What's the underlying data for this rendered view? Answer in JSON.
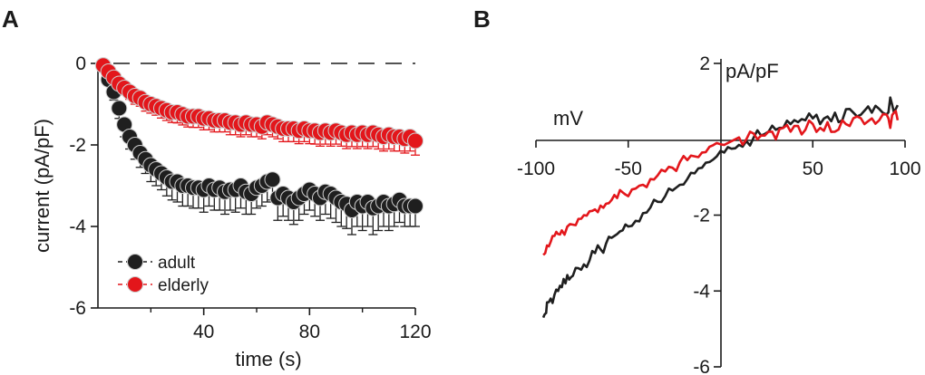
{
  "colors": {
    "adult": "#1f1f1f",
    "elderly": "#e3161b",
    "axis": "#1a1a1a"
  },
  "chart_data": [
    {
      "panel_label": "A",
      "type": "scatter",
      "xlabel": "time (s)",
      "ylabel": "current (pA/pF)",
      "xlim": [
        0,
        120
      ],
      "ylim": [
        -6,
        0
      ],
      "x_ticks": [
        40,
        80,
        120
      ],
      "x_tick_labels": [
        "40",
        "80",
        "120"
      ],
      "y_ticks": [
        0,
        -2,
        -4,
        -6
      ],
      "y_tick_labels": [
        "0",
        "-2",
        "-4",
        "-6"
      ],
      "zero_reference_line": true,
      "error_bars": "one-sided SEM",
      "legend": {
        "position": "bottom-left",
        "entries": [
          "adult",
          "elderly"
        ]
      },
      "series": [
        {
          "name": "adult",
          "x_start": 2,
          "x_step": 2,
          "values": [
            -0.05,
            -0.4,
            -0.7,
            -1.1,
            -1.5,
            -1.8,
            -2.0,
            -2.2,
            -2.35,
            -2.5,
            -2.6,
            -2.7,
            -2.8,
            -2.9,
            -2.9,
            -3.0,
            -3.0,
            -3.05,
            -3.05,
            -3.1,
            -3.0,
            -3.1,
            -3.05,
            -3.15,
            -3.1,
            -3.1,
            -3.0,
            -3.15,
            -3.2,
            -3.05,
            -3.0,
            -2.9,
            -2.85,
            -3.3,
            -3.2,
            -3.3,
            -3.4,
            -3.3,
            -3.2,
            -3.1,
            -3.2,
            -3.3,
            -3.15,
            -3.2,
            -3.3,
            -3.4,
            -3.45,
            -3.6,
            -3.4,
            -3.5,
            -3.4,
            -3.55,
            -3.5,
            -3.4,
            -3.5,
            -3.45,
            -3.35,
            -3.5,
            -3.5,
            -3.5
          ],
          "error": [
            0.05,
            0.15,
            0.2,
            0.25,
            0.3,
            0.3,
            0.35,
            0.35,
            0.35,
            0.4,
            0.4,
            0.4,
            0.45,
            0.45,
            0.5,
            0.5,
            0.5,
            0.5,
            0.5,
            0.55,
            0.5,
            0.5,
            0.55,
            0.55,
            0.5,
            0.55,
            0.55,
            0.55,
            0.5,
            0.5,
            0.5,
            0.5,
            0.5,
            0.55,
            0.55,
            0.55,
            0.55,
            0.55,
            0.5,
            0.5,
            0.55,
            0.55,
            0.55,
            0.6,
            0.6,
            0.6,
            0.6,
            0.6,
            0.6,
            0.6,
            0.6,
            0.65,
            0.6,
            0.6,
            0.6,
            0.55,
            0.55,
            0.5,
            0.5,
            0.5
          ]
        },
        {
          "name": "elderly",
          "x_start": 2,
          "x_step": 2,
          "values": [
            -0.05,
            -0.2,
            -0.35,
            -0.5,
            -0.6,
            -0.7,
            -0.8,
            -0.85,
            -0.95,
            -1.0,
            -1.05,
            -1.1,
            -1.15,
            -1.2,
            -1.2,
            -1.25,
            -1.3,
            -1.3,
            -1.3,
            -1.35,
            -1.35,
            -1.4,
            -1.4,
            -1.4,
            -1.45,
            -1.45,
            -1.5,
            -1.45,
            -1.5,
            -1.5,
            -1.55,
            -1.45,
            -1.5,
            -1.55,
            -1.6,
            -1.6,
            -1.6,
            -1.65,
            -1.6,
            -1.65,
            -1.65,
            -1.7,
            -1.65,
            -1.7,
            -1.65,
            -1.7,
            -1.75,
            -1.7,
            -1.75,
            -1.7,
            -1.75,
            -1.7,
            -1.75,
            -1.8,
            -1.75,
            -1.8,
            -1.8,
            -1.85,
            -1.8,
            -1.9
          ],
          "error": [
            0.03,
            0.08,
            0.1,
            0.12,
            0.15,
            0.18,
            0.2,
            0.2,
            0.22,
            0.22,
            0.22,
            0.24,
            0.25,
            0.25,
            0.26,
            0.26,
            0.26,
            0.27,
            0.27,
            0.28,
            0.28,
            0.28,
            0.28,
            0.28,
            0.3,
            0.3,
            0.3,
            0.3,
            0.3,
            0.3,
            0.3,
            0.3,
            0.3,
            0.3,
            0.32,
            0.32,
            0.32,
            0.32,
            0.32,
            0.32,
            0.33,
            0.33,
            0.33,
            0.33,
            0.33,
            0.33,
            0.34,
            0.34,
            0.34,
            0.34,
            0.34,
            0.34,
            0.35,
            0.35,
            0.35,
            0.35,
            0.35,
            0.35,
            0.35,
            0.35
          ]
        }
      ]
    },
    {
      "panel_label": "B",
      "type": "line",
      "xlabel": "mV",
      "ylabel": "pA/pF",
      "xlim": [
        -100,
        100
      ],
      "ylim": [
        -6,
        2
      ],
      "x_ticks": [
        -100,
        -50,
        50,
        100
      ],
      "x_tick_labels": [
        "-100",
        "-50",
        "50",
        "100"
      ],
      "y_ticks": [
        2,
        -2,
        -4,
        -6
      ],
      "y_tick_labels": [
        "2",
        "-2",
        "-4",
        "-6"
      ],
      "axes_cross_at_origin": true,
      "series": [
        {
          "name": "adult",
          "x": [
            -96,
            -95,
            -94,
            -92,
            -90,
            -88,
            -86,
            -84,
            -82,
            -80,
            -77,
            -74,
            -71,
            -68,
            -65,
            -62,
            -59,
            -56,
            -53,
            -50,
            -46,
            -42,
            -38,
            -34,
            -30,
            -26,
            -22,
            -18,
            -14,
            -10,
            -6,
            -2,
            2,
            6,
            10,
            14,
            18,
            22,
            26,
            30,
            34,
            38,
            42,
            46,
            50,
            54,
            58,
            62,
            66,
            70,
            74,
            78,
            82,
            86,
            90,
            92,
            94,
            96
          ],
          "values": [
            -4.7,
            -4.6,
            -4.3,
            -4.2,
            -4.1,
            -4.0,
            -3.9,
            -3.8,
            -3.7,
            -3.6,
            -3.4,
            -3.3,
            -3.2,
            -3.0,
            -2.9,
            -2.75,
            -2.6,
            -2.5,
            -2.4,
            -2.3,
            -2.15,
            -1.95,
            -1.8,
            -1.65,
            -1.5,
            -1.35,
            -1.2,
            -1.05,
            -0.9,
            -0.75,
            -0.6,
            -0.45,
            -0.35,
            -0.25,
            -0.15,
            -0.05,
            0.05,
            0.1,
            0.2,
            0.25,
            0.3,
            0.4,
            0.45,
            0.5,
            0.55,
            0.4,
            0.6,
            0.7,
            0.5,
            0.8,
            0.6,
            0.75,
            0.7,
            0.8,
            0.65,
            1.1,
            0.7,
            0.9
          ]
        },
        {
          "name": "elderly",
          "x": [
            -96,
            -94,
            -92,
            -90,
            -88,
            -86,
            -83,
            -80,
            -77,
            -74,
            -71,
            -68,
            -65,
            -62,
            -59,
            -56,
            -53,
            -50,
            -46,
            -42,
            -38,
            -34,
            -30,
            -26,
            -22,
            -18,
            -14,
            -10,
            -6,
            -2,
            2,
            6,
            10,
            14,
            18,
            22,
            26,
            30,
            34,
            38,
            42,
            46,
            50,
            54,
            58,
            62,
            66,
            70,
            74,
            78,
            82,
            86,
            90,
            92,
            94,
            96
          ],
          "values": [
            -3.05,
            -2.8,
            -2.7,
            -2.55,
            -2.5,
            -2.4,
            -2.3,
            -2.25,
            -2.1,
            -2.0,
            -1.9,
            -1.85,
            -1.75,
            -1.7,
            -1.6,
            -1.55,
            -1.4,
            -1.5,
            -1.3,
            -1.2,
            -1.05,
            -0.95,
            -0.85,
            -0.75,
            -0.6,
            -0.55,
            -0.45,
            -0.35,
            -0.2,
            -0.1,
            -0.15,
            -0.05,
            0.05,
            0.0,
            0.15,
            0.1,
            0.2,
            0.0,
            0.3,
            0.2,
            0.35,
            0.25,
            0.4,
            0.3,
            0.45,
            0.2,
            0.5,
            0.35,
            0.6,
            0.4,
            0.55,
            0.5,
            0.65,
            0.3,
            0.7,
            0.5
          ]
        }
      ]
    }
  ]
}
